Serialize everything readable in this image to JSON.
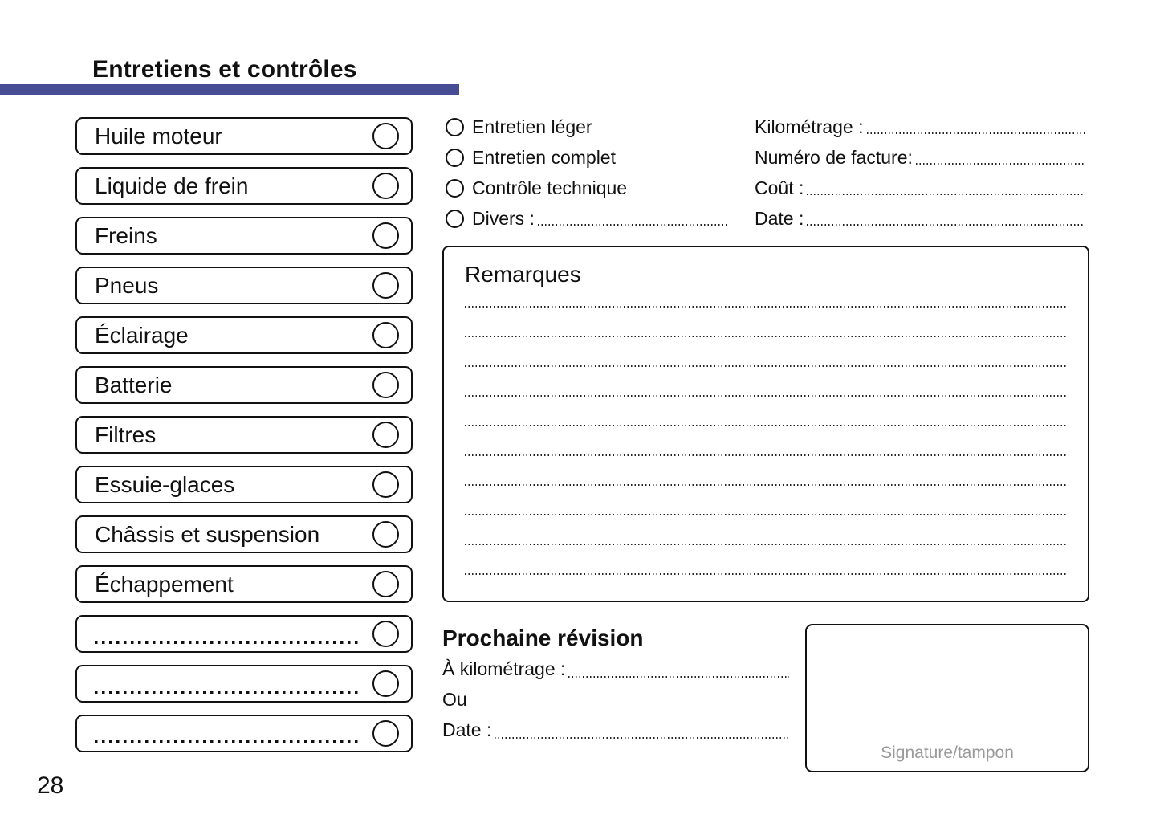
{
  "page": {
    "title": "Entretiens et contrôles",
    "page_number": "28",
    "accent_color": "#474d95",
    "background_color": "#ffffff",
    "text_color": "#111111"
  },
  "checklist": {
    "items": [
      {
        "label": "Huile moteur",
        "blank": false
      },
      {
        "label": "Liquide de frein",
        "blank": false
      },
      {
        "label": "Freins",
        "blank": false
      },
      {
        "label": "Pneus",
        "blank": false
      },
      {
        "label": "Éclairage",
        "blank": false
      },
      {
        "label": "Batterie",
        "blank": false
      },
      {
        "label": "Filtres",
        "blank": false
      },
      {
        "label": "Essuie-glaces",
        "blank": false
      },
      {
        "label": "Châssis et suspension",
        "blank": false
      },
      {
        "label": "Échappement",
        "blank": false
      },
      {
        "label": "",
        "blank": true
      },
      {
        "label": "",
        "blank": true
      },
      {
        "label": "",
        "blank": true
      }
    ]
  },
  "service_type": {
    "options": [
      {
        "label": "Entretien léger",
        "has_line": false
      },
      {
        "label": "Entretien complet",
        "has_line": false
      },
      {
        "label": "Contrôle technique",
        "has_line": false
      },
      {
        "label": "Divers :",
        "has_line": true
      }
    ]
  },
  "invoice_fields": {
    "rows": [
      {
        "label": "Kilométrage :"
      },
      {
        "label": "Numéro de facture:"
      },
      {
        "label": "Coût :"
      },
      {
        "label": "Date :"
      }
    ]
  },
  "remarks": {
    "title": "Remarques",
    "line_count": 10
  },
  "next_service": {
    "title": "Prochaine révision",
    "rows": [
      {
        "label": "À kilométrage :",
        "has_line": true
      },
      {
        "label": "Ou",
        "has_line": false
      },
      {
        "label": "Date :",
        "has_line": true
      }
    ]
  },
  "signature": {
    "label": "Signature/tampon"
  }
}
